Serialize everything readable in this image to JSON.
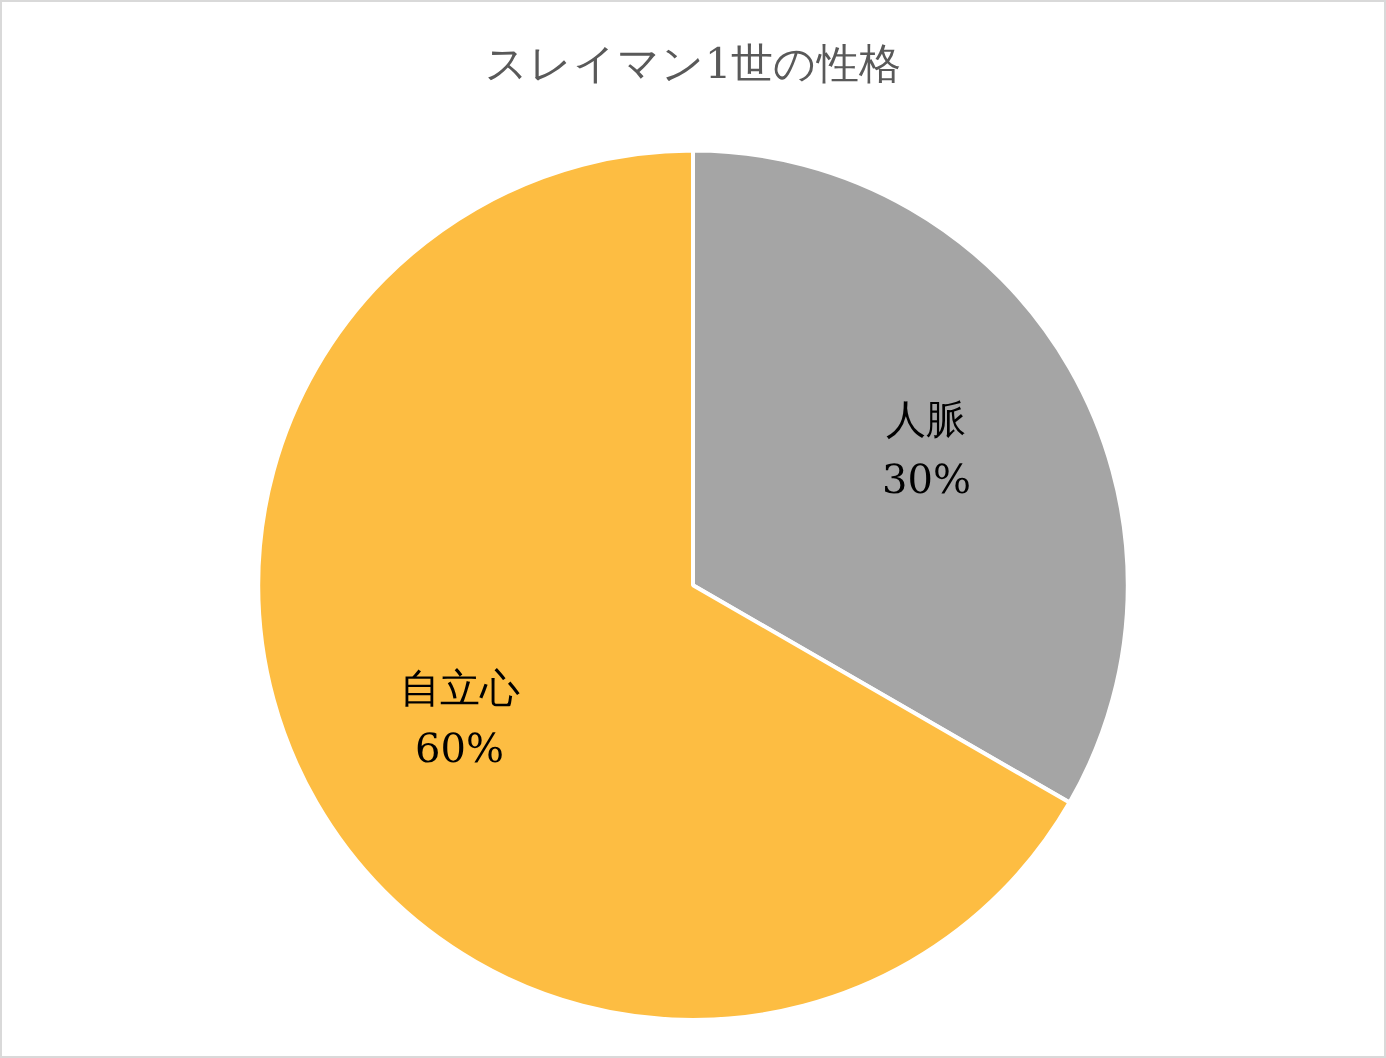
{
  "chart_data": {
    "type": "pie",
    "title": "スレイマン1世の性格",
    "categories": [
      "人脈",
      "自立心"
    ],
    "values": [
      30,
      60
    ],
    "colors": [
      "#a5a5a5",
      "#fdbd42"
    ],
    "value_labels": [
      "30%",
      "60%"
    ]
  }
}
